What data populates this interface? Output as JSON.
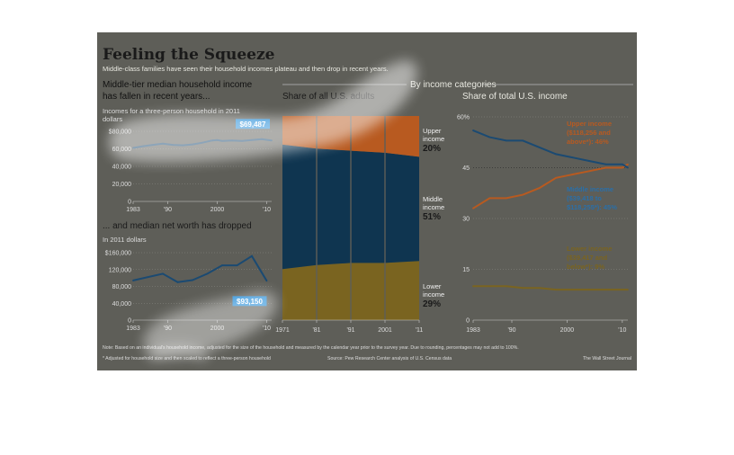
{
  "header": {
    "title": "Feeling the Squeeze",
    "subtitle": "Middle-class families have seen their household incomes plateau and then drop in recent years.",
    "section_label": "By income categories"
  },
  "footer": {
    "note": "Note: Based on an individual's household income, adjusted for the size of the household and measured by the calendar year prior to the survey year. Due to rounding, percentages may not add to 100%.",
    "footnote": "* Adjusted for household size and then scaled to reflect a three-person household",
    "source": "Source: Pew Research Center analysis of U.S. Census data",
    "credit": "The Wall Street Journal"
  },
  "colors": {
    "panel_bg": "#5e5e58",
    "line_blue": "#1b4a72",
    "highlight_blue": "#2a8fd8",
    "upper": "#b85a20",
    "middle": "#0f3550",
    "lower": "#7a6420",
    "glow": "#ffffff"
  },
  "chart_data": [
    {
      "id": "median-income",
      "type": "line",
      "title": "Middle-tier median household income has fallen in recent years...",
      "subtitle": "Incomes for a three-person household in 2011 dollars",
      "x": [
        1983,
        1985,
        1987,
        1989,
        1991,
        1993,
        1995,
        1997,
        1999,
        2000,
        2001,
        2003,
        2005,
        2007,
        2009,
        2011
      ],
      "values": [
        61000,
        63000,
        64500,
        66000,
        64500,
        64000,
        65000,
        67000,
        69500,
        70000,
        69000,
        69500,
        69000,
        70000,
        71000,
        69487
      ],
      "ylim": [
        0,
        80000
      ],
      "yticks": [
        "$80,000",
        "60,000",
        "40,000",
        "20,000",
        "0"
      ],
      "xticks": [
        "1983",
        "'90",
        "2000",
        "'10"
      ],
      "callout": "$69,487"
    },
    {
      "id": "median-net-worth",
      "type": "line",
      "title": "... and median net worth has dropped",
      "subtitle": "In 2011 dollars",
      "x": [
        1983,
        1989,
        1992,
        1995,
        1998,
        2001,
        2004,
        2007,
        2010
      ],
      "values": [
        94000,
        110000,
        90000,
        95000,
        110000,
        130000,
        130000,
        152000,
        93150
      ],
      "ylim": [
        0,
        160000
      ],
      "yticks": [
        "$160,000",
        "120,000",
        "80,000",
        "40,000",
        "0"
      ],
      "xticks": [
        "1983",
        "'90",
        "2000",
        "'10"
      ],
      "callout": "$93,150"
    },
    {
      "id": "share-adults",
      "type": "area",
      "title": "Share of all U.S. adults",
      "categories": [
        "1971",
        "'81",
        "'91",
        "2001",
        "'11"
      ],
      "series": [
        {
          "name": "Lower income",
          "values": [
            25,
            27,
            28,
            28,
            29
          ]
        },
        {
          "name": "Middle income",
          "values": [
            61,
            57,
            55,
            54,
            51
          ]
        },
        {
          "name": "Upper income",
          "values": [
            14,
            16,
            17,
            18,
            20
          ]
        }
      ],
      "labels": [
        {
          "name": "Upper",
          "sub": "income",
          "pct": "20%"
        },
        {
          "name": "Middle",
          "sub": "income",
          "pct": "51%"
        },
        {
          "name": "Lower",
          "sub": "income",
          "pct": "29%"
        }
      ],
      "ylim": [
        0,
        100
      ]
    },
    {
      "id": "share-income",
      "type": "line",
      "title": "Share of total U.S. income",
      "x": [
        1983,
        1986,
        1989,
        1992,
        1995,
        1998,
        2001,
        2004,
        2007,
        2010,
        2011
      ],
      "series": [
        {
          "name": "Upper income ($118,256 and above*): 46%",
          "label_lines": [
            "Upper income",
            "($118,256 and",
            "above*): 46%"
          ],
          "values": [
            33,
            36,
            36,
            37,
            39,
            42,
            43,
            44,
            45,
            45,
            46
          ]
        },
        {
          "name": "Middle income ($39,418 to $118,255*): 45%",
          "label_lines": [
            "Middle income",
            "($39,418 to",
            "$118,255*): 45%"
          ],
          "values": [
            56,
            54,
            53,
            53,
            51,
            49,
            48,
            47,
            46,
            46,
            45
          ]
        },
        {
          "name": "Lower income ($39,417 and below*): 9%",
          "label_lines": [
            "Lower income",
            "($39,417 and",
            "below*): 9%"
          ],
          "values": [
            10,
            10,
            10,
            9.5,
            9.5,
            9,
            9,
            9,
            9,
            9,
            9
          ]
        }
      ],
      "ylim": [
        0,
        60
      ],
      "yticks": [
        "60%",
        "45",
        "30",
        "15",
        "0"
      ],
      "xticks": [
        "1983",
        "'90",
        "2000",
        "'10"
      ]
    }
  ]
}
